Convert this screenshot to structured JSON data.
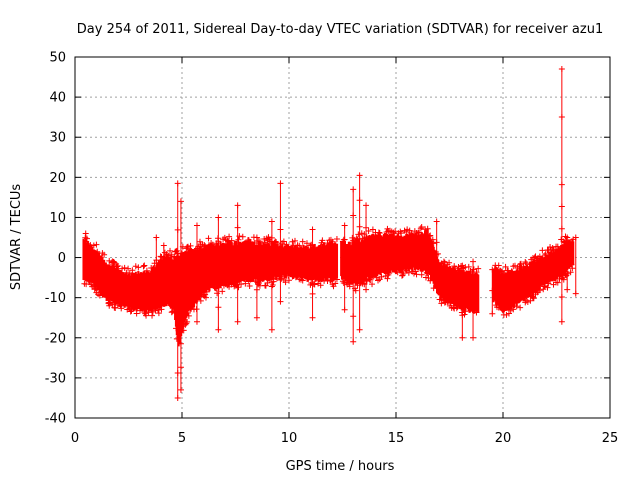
{
  "chart_data": {
    "type": "scatter",
    "title": "Day 254 of 2011, Sidereal Day-to-day VTEC variation (SDTVAR) for receiver azu1",
    "xlabel": "GPS time / hours",
    "ylabel": "SDTVAR / TECUs",
    "xlim": [
      0,
      25
    ],
    "ylim": [
      -40,
      50
    ],
    "xticks": [
      0,
      5,
      10,
      15,
      20,
      25
    ],
    "yticks": [
      -40,
      -30,
      -20,
      -10,
      0,
      10,
      20,
      30,
      40,
      50
    ],
    "grid": true,
    "marker": "+",
    "color": "#ff0000",
    "series": [
      {
        "name": "SDTVAR",
        "band": [
          {
            "x": 0.4,
            "lo": -5,
            "hi": 4
          },
          {
            "x": 0.8,
            "lo": -6,
            "hi": 2
          },
          {
            "x": 1.5,
            "lo": -10,
            "hi": -2
          },
          {
            "x": 2.5,
            "lo": -12,
            "hi": -5
          },
          {
            "x": 3.5,
            "lo": -13,
            "hi": -4
          },
          {
            "x": 4.2,
            "lo": -11,
            "hi": 0
          },
          {
            "x": 4.6,
            "lo": -12,
            "hi": -1
          },
          {
            "x": 4.85,
            "lo": -22,
            "hi": 0
          },
          {
            "x": 5.2,
            "lo": -14,
            "hi": 1
          },
          {
            "x": 6.0,
            "lo": -8,
            "hi": 2
          },
          {
            "x": 7.0,
            "lo": -6,
            "hi": 3
          },
          {
            "x": 8.0,
            "lo": -5,
            "hi": 3
          },
          {
            "x": 9.0,
            "lo": -5,
            "hi": 3
          },
          {
            "x": 10.0,
            "lo": -4,
            "hi": 2
          },
          {
            "x": 11.0,
            "lo": -5,
            "hi": 2
          },
          {
            "x": 12.0,
            "lo": -5,
            "hi": 3
          },
          {
            "x": 12.3,
            "lo": -4,
            "hi": 3
          },
          {
            "x": 13.0,
            "lo": -6,
            "hi": 3
          },
          {
            "x": 14.0,
            "lo": -4,
            "hi": 5
          },
          {
            "x": 15.0,
            "lo": -3,
            "hi": 5
          },
          {
            "x": 16.0,
            "lo": -2,
            "hi": 5
          },
          {
            "x": 16.5,
            "lo": -3,
            "hi": 6
          },
          {
            "x": 17.0,
            "lo": -9,
            "hi": -2
          },
          {
            "x": 18.0,
            "lo": -12,
            "hi": -4
          },
          {
            "x": 18.7,
            "lo": -13,
            "hi": -5
          },
          {
            "x": 19.6,
            "lo": -10,
            "hi": -3
          },
          {
            "x": 20.0,
            "lo": -13,
            "hi": -5
          },
          {
            "x": 21.0,
            "lo": -10,
            "hi": -3
          },
          {
            "x": 22.0,
            "lo": -6,
            "hi": 0
          },
          {
            "x": 22.7,
            "lo": -4,
            "hi": 2
          },
          {
            "x": 23.3,
            "lo": -1,
            "hi": 4
          }
        ],
        "gaps": [
          [
            12.25,
            12.4
          ],
          [
            18.85,
            19.55
          ]
        ],
        "spikes": [
          {
            "x": 0.5,
            "lo": -3,
            "hi": 6
          },
          {
            "x": 1.6,
            "lo": -12,
            "hi": -10
          },
          {
            "x": 3.8,
            "lo": -12,
            "hi": 5
          },
          {
            "x": 4.15,
            "lo": -10,
            "hi": 3
          },
          {
            "x": 4.8,
            "lo": -35,
            "hi": 18.5
          },
          {
            "x": 4.95,
            "lo": -33,
            "hi": 14
          },
          {
            "x": 5.7,
            "lo": -16,
            "hi": 8
          },
          {
            "x": 6.7,
            "lo": -18,
            "hi": 10
          },
          {
            "x": 7.6,
            "lo": -16,
            "hi": 13
          },
          {
            "x": 8.5,
            "lo": -15,
            "hi": 5
          },
          {
            "x": 9.2,
            "lo": -18,
            "hi": 9
          },
          {
            "x": 9.6,
            "lo": -11,
            "hi": 18.5
          },
          {
            "x": 11.1,
            "lo": -15,
            "hi": 7
          },
          {
            "x": 12.6,
            "lo": -13,
            "hi": 8
          },
          {
            "x": 13.0,
            "lo": -21,
            "hi": 17
          },
          {
            "x": 13.3,
            "lo": -18,
            "hi": 20.5
          },
          {
            "x": 13.6,
            "lo": -8,
            "hi": 13
          },
          {
            "x": 16.9,
            "lo": -6,
            "hi": 9
          },
          {
            "x": 18.1,
            "lo": -20,
            "hi": -2
          },
          {
            "x": 18.6,
            "lo": -20,
            "hi": -1
          },
          {
            "x": 19.5,
            "lo": -14,
            "hi": -3
          },
          {
            "x": 22.75,
            "lo": -16,
            "hi": 47
          },
          {
            "x": 23.0,
            "lo": -8,
            "hi": 5
          },
          {
            "x": 23.4,
            "lo": -9,
            "hi": 5
          }
        ]
      }
    ]
  }
}
